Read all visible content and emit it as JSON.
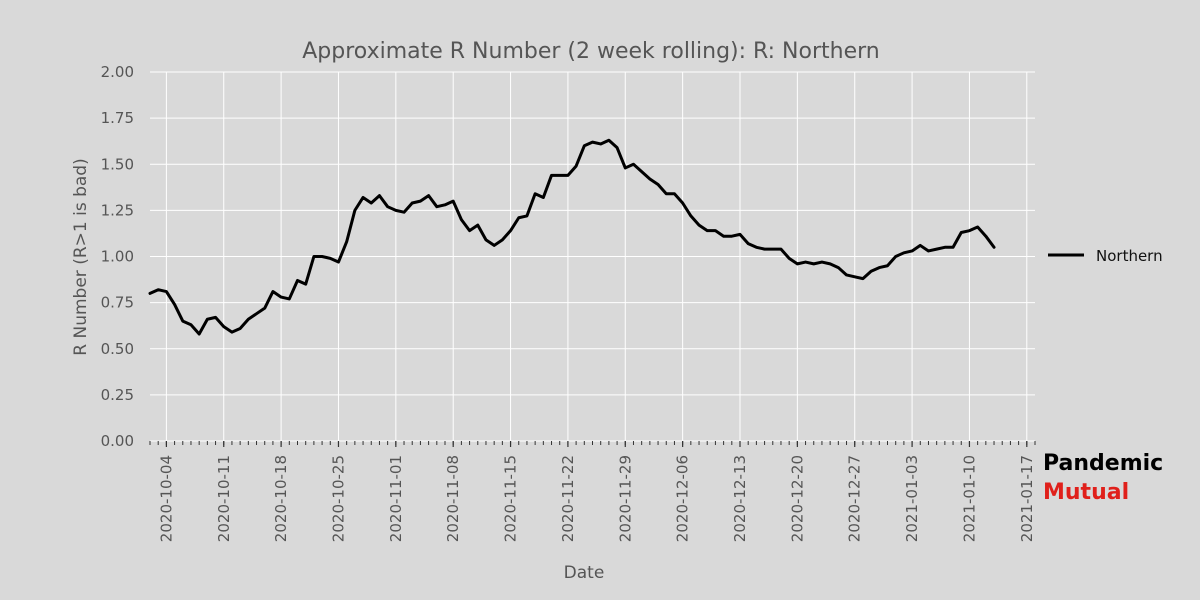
{
  "chart_data": {
    "type": "line",
    "title": "Approximate R Number (2 week rolling): R: Northern",
    "xlabel": "Date",
    "ylabel": "R Number (R>1 is bad)",
    "ylim": [
      0,
      2
    ],
    "xlim": [
      "2020-10-02",
      "2021-01-18"
    ],
    "y_ticks": [
      "0.00",
      "0.25",
      "0.50",
      "0.75",
      "1.00",
      "1.25",
      "1.50",
      "1.75",
      "2.00"
    ],
    "x_ticks": [
      "2020-10-04",
      "2020-10-11",
      "2020-10-18",
      "2020-10-25",
      "2020-11-01",
      "2020-11-08",
      "2020-11-15",
      "2020-11-22",
      "2020-11-29",
      "2020-12-06",
      "2020-12-13",
      "2020-12-20",
      "2020-12-27",
      "2021-01-03",
      "2021-01-10",
      "2021-01-17"
    ],
    "grid": true,
    "legend_position": "right",
    "series": [
      {
        "name": "Northern",
        "color": "#000000",
        "x": [
          "2020-10-02",
          "2020-10-03",
          "2020-10-04",
          "2020-10-05",
          "2020-10-06",
          "2020-10-07",
          "2020-10-08",
          "2020-10-09",
          "2020-10-10",
          "2020-10-11",
          "2020-10-12",
          "2020-10-13",
          "2020-10-14",
          "2020-10-15",
          "2020-10-16",
          "2020-10-17",
          "2020-10-18",
          "2020-10-19",
          "2020-10-20",
          "2020-10-21",
          "2020-10-22",
          "2020-10-23",
          "2020-10-24",
          "2020-10-25",
          "2020-10-26",
          "2020-10-27",
          "2020-10-28",
          "2020-10-29",
          "2020-10-30",
          "2020-10-31",
          "2020-11-01",
          "2020-11-02",
          "2020-11-03",
          "2020-11-04",
          "2020-11-05",
          "2020-11-06",
          "2020-11-07",
          "2020-11-08",
          "2020-11-09",
          "2020-11-10",
          "2020-11-11",
          "2020-11-12",
          "2020-11-13",
          "2020-11-14",
          "2020-11-15",
          "2020-11-16",
          "2020-11-17",
          "2020-11-18",
          "2020-11-19",
          "2020-11-20",
          "2020-11-21",
          "2020-11-22",
          "2020-11-23",
          "2020-11-24",
          "2020-11-25",
          "2020-11-26",
          "2020-11-27",
          "2020-11-28",
          "2020-11-29",
          "2020-11-30",
          "2020-12-01",
          "2020-12-02",
          "2020-12-03",
          "2020-12-04",
          "2020-12-05",
          "2020-12-06",
          "2020-12-07",
          "2020-12-08",
          "2020-12-09",
          "2020-12-10",
          "2020-12-11",
          "2020-12-12",
          "2020-12-13",
          "2020-12-14",
          "2020-12-15",
          "2020-12-16",
          "2020-12-17",
          "2020-12-18",
          "2020-12-19",
          "2020-12-20",
          "2020-12-21",
          "2020-12-22",
          "2020-12-23",
          "2020-12-24",
          "2020-12-25",
          "2020-12-26",
          "2020-12-27",
          "2020-12-28",
          "2020-12-29",
          "2020-12-30",
          "2020-12-31",
          "2021-01-01",
          "2021-01-02",
          "2021-01-03",
          "2021-01-04",
          "2021-01-05",
          "2021-01-06",
          "2021-01-07",
          "2021-01-08",
          "2021-01-09",
          "2021-01-10",
          "2021-01-11",
          "2021-01-12",
          "2021-01-13"
        ],
        "values": [
          0.8,
          0.82,
          0.81,
          0.74,
          0.65,
          0.63,
          0.58,
          0.66,
          0.67,
          0.62,
          0.59,
          0.61,
          0.66,
          0.69,
          0.72,
          0.81,
          0.78,
          0.77,
          0.87,
          0.85,
          1.0,
          1.0,
          0.99,
          0.97,
          1.08,
          1.25,
          1.32,
          1.29,
          1.33,
          1.27,
          1.25,
          1.24,
          1.29,
          1.3,
          1.33,
          1.27,
          1.28,
          1.3,
          1.2,
          1.14,
          1.17,
          1.09,
          1.06,
          1.09,
          1.14,
          1.21,
          1.22,
          1.34,
          1.32,
          1.44,
          1.44,
          1.44,
          1.49,
          1.6,
          1.62,
          1.61,
          1.63,
          1.59,
          1.48,
          1.5,
          1.46,
          1.42,
          1.39,
          1.34,
          1.34,
          1.29,
          1.22,
          1.17,
          1.14,
          1.14,
          1.11,
          1.11,
          1.12,
          1.07,
          1.05,
          1.04,
          1.04,
          1.04,
          0.99,
          0.96,
          0.97,
          0.96,
          0.97,
          0.96,
          0.94,
          0.9,
          0.89,
          0.88,
          0.92,
          0.94,
          0.95,
          1.0,
          1.02,
          1.03,
          1.06,
          1.03,
          1.04,
          1.05,
          1.05,
          1.13,
          1.14,
          1.16,
          1.11,
          1.05
        ]
      }
    ]
  },
  "legend": {
    "label": "Northern",
    "color": "#000000"
  },
  "brand": {
    "line1": "Pandemic",
    "line2": "Mutual",
    "color1": "#000000",
    "color2": "#e0201b"
  }
}
